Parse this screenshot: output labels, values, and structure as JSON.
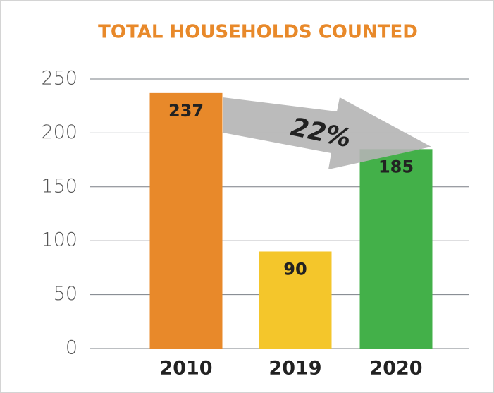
{
  "chart_data": {
    "type": "bar",
    "title": "TOTAL HOUSEHOLDS COUNTED",
    "categories": [
      "2010",
      "2019",
      "2020"
    ],
    "values": [
      237,
      90,
      185
    ],
    "colors": [
      "#e8892a",
      "#f4c62b",
      "#43b049"
    ],
    "annotation": "22%",
    "ylim": [
      0,
      250
    ],
    "yticks": [
      0,
      50,
      100,
      150,
      200,
      250
    ],
    "grid": true
  }
}
